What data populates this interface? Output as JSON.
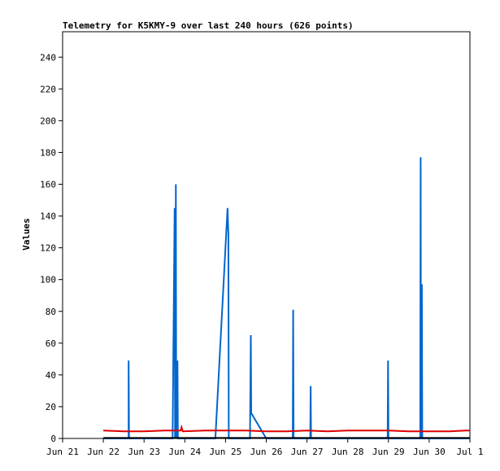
{
  "chart_data": {
    "type": "line",
    "title": "Telemetry for K5KMY-9 over last 240 hours (626 points)",
    "xlabel": "",
    "ylabel": "Values",
    "x_tick_labels": [
      "Jun 21",
      "Jun 22",
      "Jun 23",
      "Jun 24",
      "Jun 25",
      "Jun 26",
      "Jun 27",
      "Jun 28",
      "Jun 29",
      "Jun 30",
      "Jul 1"
    ],
    "xlim": [
      "Jun 21 00:00",
      "Jul 1 00:00"
    ],
    "y_ticks": [
      0,
      20,
      40,
      60,
      80,
      100,
      120,
      140,
      160,
      180,
      200,
      220,
      240
    ],
    "ylim": [
      0,
      256
    ],
    "grid": false,
    "legend": "none",
    "series": [
      {
        "color": "#0066cc",
        "points": [
          [
            1.0,
            0
          ],
          [
            1.62,
            0
          ],
          [
            1.62,
            49
          ],
          [
            1.63,
            0
          ],
          [
            2.7,
            0
          ],
          [
            2.75,
            145
          ],
          [
            2.76,
            0
          ],
          [
            2.78,
            160
          ],
          [
            2.79,
            0
          ],
          [
            2.82,
            49
          ],
          [
            2.83,
            0
          ],
          [
            3.75,
            0
          ],
          [
            4.05,
            145
          ],
          [
            4.07,
            128
          ],
          [
            4.08,
            0
          ],
          [
            4.6,
            0
          ],
          [
            4.62,
            65
          ],
          [
            4.63,
            16
          ],
          [
            5.0,
            0
          ],
          [
            5.65,
            0
          ],
          [
            5.66,
            81
          ],
          [
            5.67,
            0
          ],
          [
            6.08,
            0
          ],
          [
            6.09,
            33
          ],
          [
            6.1,
            0
          ],
          [
            7.98,
            0
          ],
          [
            7.99,
            49
          ],
          [
            8.0,
            0
          ],
          [
            8.78,
            0
          ],
          [
            8.79,
            177
          ],
          [
            8.8,
            0
          ],
          [
            8.82,
            97
          ],
          [
            8.83,
            0
          ],
          [
            10.0,
            0
          ]
        ]
      },
      {
        "color": "#dd0000",
        "points": [
          [
            1.0,
            5
          ],
          [
            1.5,
            4.5
          ],
          [
            2.0,
            4.5
          ],
          [
            2.5,
            5
          ],
          [
            2.9,
            5
          ],
          [
            2.92,
            7
          ],
          [
            2.95,
            4.5
          ],
          [
            3.5,
            5
          ],
          [
            4.0,
            5
          ],
          [
            4.5,
            5
          ],
          [
            5.0,
            4.5
          ],
          [
            5.5,
            4.5
          ],
          [
            6.0,
            5
          ],
          [
            6.5,
            4.5
          ],
          [
            7.0,
            5
          ],
          [
            7.5,
            5
          ],
          [
            8.0,
            5
          ],
          [
            8.5,
            4.5
          ],
          [
            9.0,
            4.5
          ],
          [
            9.5,
            4.5
          ],
          [
            9.9,
            5
          ],
          [
            10.0,
            5
          ]
        ]
      },
      {
        "color": "#000000",
        "points": [
          [
            1.0,
            0.3
          ],
          [
            10.0,
            0.3
          ]
        ]
      }
    ]
  }
}
